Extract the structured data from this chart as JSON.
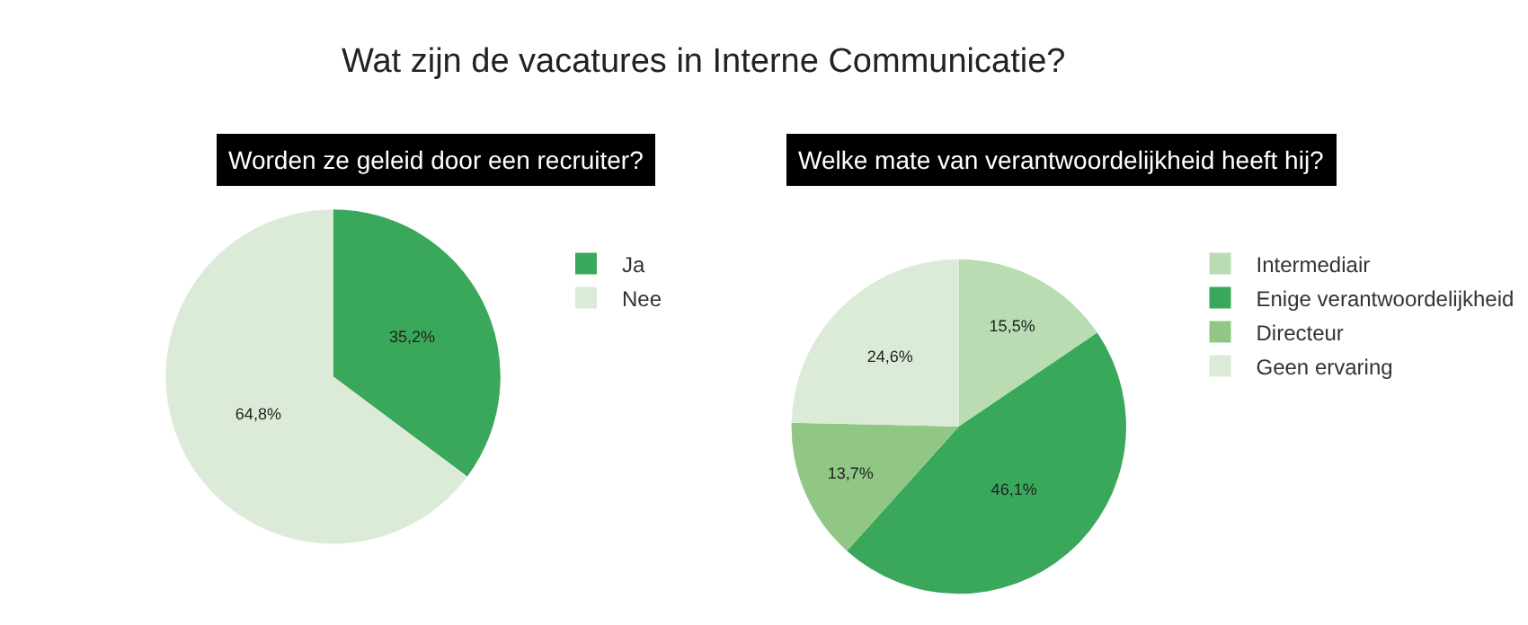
{
  "chart_data": [
    {
      "type": "pie",
      "title": "Wat zijn de vacatures in Interne Communicatie?",
      "subtitle": "Worden ze geleid door een recruiter?",
      "categories": [
        "Ja",
        "Nee"
      ],
      "values": [
        35.2,
        64.8
      ],
      "colors": [
        "#3aa85a",
        "#dcebd8"
      ],
      "value_labels": [
        "35,2%",
        "64,8%"
      ],
      "legend": "top right"
    },
    {
      "type": "pie",
      "subtitle": "Welke mate van verantwoordelijkheid heeft hij?",
      "categories": [
        "Intermediair",
        "Enige verantwoordelijkheid",
        "Directeur",
        "Geen ervaring"
      ],
      "values": [
        15.5,
        46.1,
        13.7,
        24.6
      ],
      "colors": [
        "#b9dcb2",
        "#3aa85a",
        "#90c785",
        "#dcebd8"
      ],
      "value_labels": [
        "15,5%",
        "46,1%",
        "13,7%",
        "24,6%"
      ],
      "legend": "top right"
    }
  ]
}
